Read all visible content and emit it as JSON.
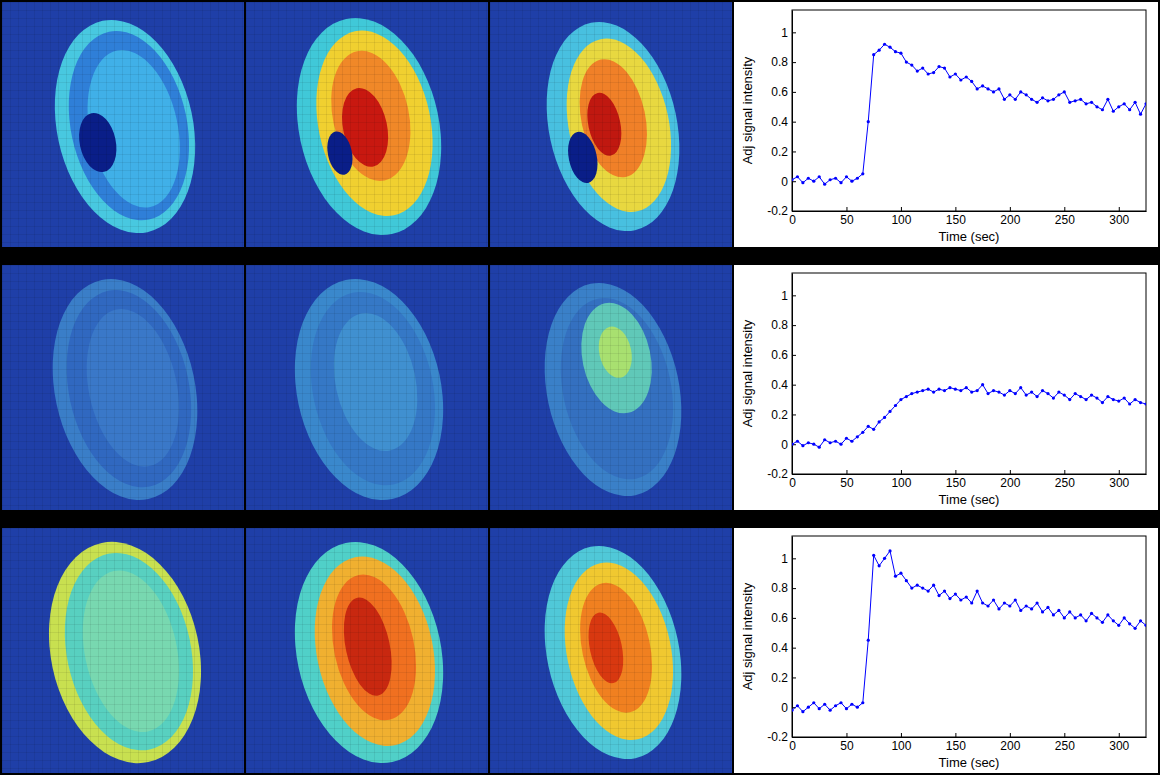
{
  "chart_data": [
    {
      "type": "line",
      "x_label": "Time (sec)",
      "y_label": "Adj signal intensity",
      "x": [
        0,
        5,
        10,
        15,
        20,
        25,
        30,
        35,
        40,
        45,
        50,
        55,
        60,
        65,
        70,
        75,
        80,
        85,
        90,
        95,
        100,
        105,
        110,
        115,
        120,
        125,
        130,
        135,
        140,
        145,
        150,
        155,
        160,
        165,
        170,
        175,
        180,
        185,
        190,
        195,
        200,
        205,
        210,
        215,
        220,
        225,
        230,
        235,
        240,
        245,
        250,
        255,
        260,
        265,
        270,
        275,
        280,
        285,
        290,
        295,
        300,
        305,
        310,
        315,
        320,
        325
      ],
      "values": [
        0.01,
        0.03,
        -0.01,
        0.02,
        0.0,
        0.03,
        -0.02,
        0.01,
        0.02,
        -0.01,
        0.03,
        0.0,
        0.02,
        0.05,
        0.4,
        0.85,
        0.88,
        0.92,
        0.9,
        0.87,
        0.86,
        0.8,
        0.78,
        0.74,
        0.76,
        0.72,
        0.73,
        0.77,
        0.76,
        0.7,
        0.72,
        0.68,
        0.7,
        0.67,
        0.62,
        0.64,
        0.62,
        0.6,
        0.62,
        0.55,
        0.58,
        0.55,
        0.6,
        0.58,
        0.55,
        0.53,
        0.56,
        0.54,
        0.55,
        0.58,
        0.6,
        0.53,
        0.54,
        0.55,
        0.52,
        0.53,
        0.5,
        0.48,
        0.55,
        0.47,
        0.5,
        0.52,
        0.48,
        0.53,
        0.45,
        0.52
      ],
      "color": "#0000ff",
      "marker": "point",
      "line_style": "solid",
      "xlim": [
        0,
        325
      ],
      "xticks": [
        0,
        50,
        100,
        150,
        200,
        250,
        300
      ],
      "ylim": [
        -0.2,
        1.15
      ],
      "yticks": [
        -0.2,
        0,
        0.2,
        0.4,
        0.6,
        0.8,
        1
      ]
    },
    {
      "type": "line",
      "x_label": "Time (sec)",
      "y_label": "Adj signal intensity",
      "x": [
        0,
        5,
        10,
        15,
        20,
        25,
        30,
        35,
        40,
        45,
        50,
        55,
        60,
        65,
        70,
        75,
        80,
        85,
        90,
        95,
        100,
        105,
        110,
        115,
        120,
        125,
        130,
        135,
        140,
        145,
        150,
        155,
        160,
        165,
        170,
        175,
        180,
        185,
        190,
        195,
        200,
        205,
        210,
        215,
        220,
        225,
        230,
        235,
        240,
        245,
        250,
        255,
        260,
        265,
        270,
        275,
        280,
        285,
        290,
        295,
        300,
        305,
        310,
        315,
        320,
        325
      ],
      "values": [
        0.0,
        0.02,
        -0.01,
        0.01,
        0.0,
        -0.02,
        0.03,
        0.01,
        0.02,
        0.0,
        0.04,
        0.02,
        0.05,
        0.08,
        0.12,
        0.1,
        0.15,
        0.18,
        0.22,
        0.26,
        0.3,
        0.32,
        0.34,
        0.35,
        0.36,
        0.37,
        0.35,
        0.37,
        0.36,
        0.38,
        0.37,
        0.36,
        0.38,
        0.35,
        0.36,
        0.4,
        0.34,
        0.36,
        0.35,
        0.33,
        0.36,
        0.34,
        0.38,
        0.33,
        0.35,
        0.32,
        0.36,
        0.34,
        0.31,
        0.35,
        0.33,
        0.3,
        0.34,
        0.32,
        0.3,
        0.33,
        0.31,
        0.28,
        0.32,
        0.3,
        0.29,
        0.31,
        0.27,
        0.3,
        0.28,
        0.27
      ],
      "color": "#0000ff",
      "marker": "point",
      "line_style": "solid",
      "xlim": [
        0,
        325
      ],
      "xticks": [
        0,
        50,
        100,
        150,
        200,
        250,
        300
      ],
      "ylim": [
        -0.2,
        1.15
      ],
      "yticks": [
        -0.2,
        0,
        0.2,
        0.4,
        0.6,
        0.8,
        1
      ]
    },
    {
      "type": "line",
      "x_label": "Time (sec)",
      "y_label": "Adj signal intensity",
      "x": [
        0,
        5,
        10,
        15,
        20,
        25,
        30,
        35,
        40,
        45,
        50,
        55,
        60,
        65,
        70,
        75,
        80,
        85,
        90,
        95,
        100,
        105,
        110,
        115,
        120,
        125,
        130,
        135,
        140,
        145,
        150,
        155,
        160,
        165,
        170,
        175,
        180,
        185,
        190,
        195,
        200,
        205,
        210,
        215,
        220,
        225,
        230,
        235,
        240,
        245,
        250,
        255,
        260,
        265,
        270,
        275,
        280,
        285,
        290,
        295,
        300,
        305,
        310,
        315,
        320,
        325
      ],
      "values": [
        -0.02,
        0.01,
        -0.03,
        0.0,
        0.03,
        -0.01,
        0.02,
        -0.02,
        0.01,
        0.03,
        -0.01,
        0.02,
        0.0,
        0.03,
        0.45,
        1.02,
        0.95,
        1.0,
        1.05,
        0.88,
        0.9,
        0.85,
        0.8,
        0.82,
        0.8,
        0.78,
        0.82,
        0.75,
        0.78,
        0.73,
        0.76,
        0.72,
        0.74,
        0.7,
        0.78,
        0.7,
        0.68,
        0.72,
        0.66,
        0.7,
        0.68,
        0.72,
        0.65,
        0.68,
        0.66,
        0.7,
        0.64,
        0.67,
        0.62,
        0.65,
        0.6,
        0.64,
        0.6,
        0.62,
        0.58,
        0.63,
        0.6,
        0.57,
        0.62,
        0.58,
        0.55,
        0.6,
        0.56,
        0.53,
        0.58,
        0.55
      ],
      "color": "#0000ff",
      "marker": "point",
      "line_style": "solid",
      "xlim": [
        0,
        325
      ],
      "xticks": [
        0,
        50,
        100,
        150,
        200,
        250,
        300
      ],
      "ylim": [
        -0.2,
        1.15
      ],
      "yticks": [
        -0.2,
        0,
        0.2,
        0.4,
        0.6,
        0.8,
        1
      ]
    }
  ]
}
